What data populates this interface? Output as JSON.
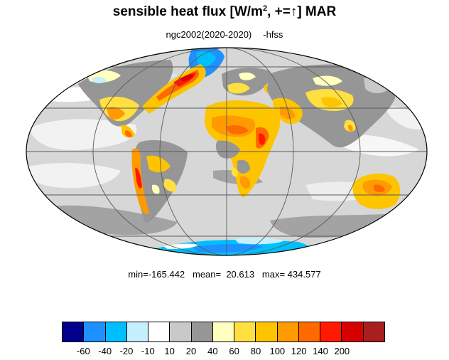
{
  "title": {
    "text": "sensible heat flux [W/m",
    "sup": "2",
    "sign": ", +=",
    "arrow": "↑",
    "tail": "]  MAR"
  },
  "subtitle": {
    "case": "ngc2002(2020-2020)",
    "var": "-hfss"
  },
  "stats": {
    "text": "min=-165.442   mean=  20.613   max= 434.577"
  },
  "map": {
    "projection": "mollweide",
    "grid": true
  },
  "colorbar": {
    "colors": [
      "#00008b",
      "#1e90ff",
      "#00bfff",
      "#c6f0ff",
      "#ffffff",
      "#c9c9c9",
      "#969696",
      "#ffffc0",
      "#ffe040",
      "#ffc400",
      "#ff9a00",
      "#ff6a00",
      "#ff1a00",
      "#d70000",
      "#a81f1f"
    ],
    "labels": [
      "-60",
      "-40",
      "-20",
      "-10",
      "10",
      "20",
      "40",
      "60",
      "80",
      "100",
      "120",
      "140",
      "200"
    ]
  }
}
